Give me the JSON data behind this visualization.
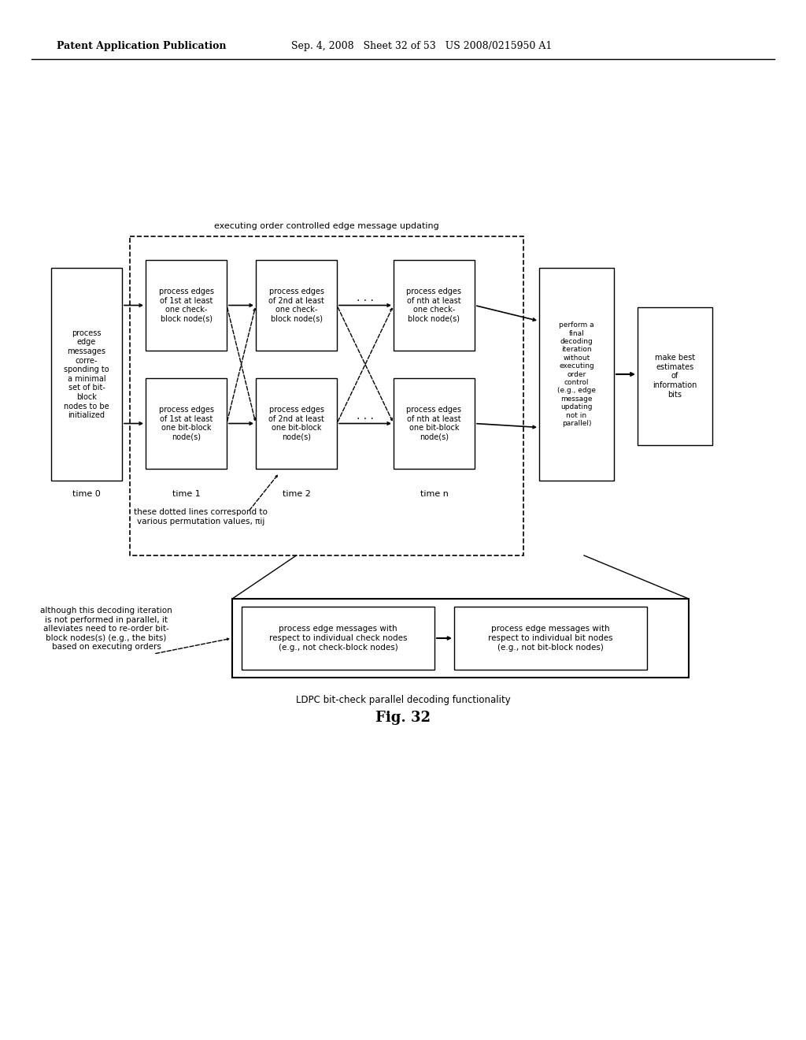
{
  "bg_color": "#ffffff",
  "fig_caption": "LDPC bit-check parallel decoding functionality",
  "fig_label": "Fig. 32",
  "outer_dashed_label": "executing order controlled edge message updating",
  "box0_text": "process\nedge\nmessages\ncorre-\nsponding to\na minimal\nset of bit-\nblock\nnodes to be\ninitialized",
  "box1_top_text": "process edges\nof 1st at least\none check-\nblock node(s)",
  "box2_top_text": "process edges\nof 2nd at least\none check-\nblock node(s)",
  "box3_top_text": "process edges\nof nth at least\none check-\nblock node(s)",
  "box1_bot_text": "process edges\nof 1st at least\none bit-block\nnode(s)",
  "box2_bot_text": "process edges\nof 2nd at least\none bit-block\nnode(s)",
  "box3_bot_text": "process edges\nof nth at least\none bit-block\nnode(s)",
  "box_perform_text": "perform a\nfinal\ndecoding\niteration\nwithout\nexecuting\norder\ncontrol\n(e.g., edge\nmessage\nupdating\nnot in\nparallel)",
  "box_best_text": "make best\nestimates\nof\ninformation\nbits",
  "dotted_label": "these dotted lines correspond to\nvarious permutation values, πij",
  "alt_label": "although this decoding iteration\nis not performed in parallel, it\nalleviates need to re-order bit-\nblock nodes(s) (e.g., the bits)\nbased on executing orders",
  "bot_left_text": "process edge messages with\nrespect to individual check nodes\n(e.g., not check-block nodes)",
  "bot_right_text": "process edge messages with\nrespect to individual bit nodes\n(e.g., not bit-block nodes)"
}
